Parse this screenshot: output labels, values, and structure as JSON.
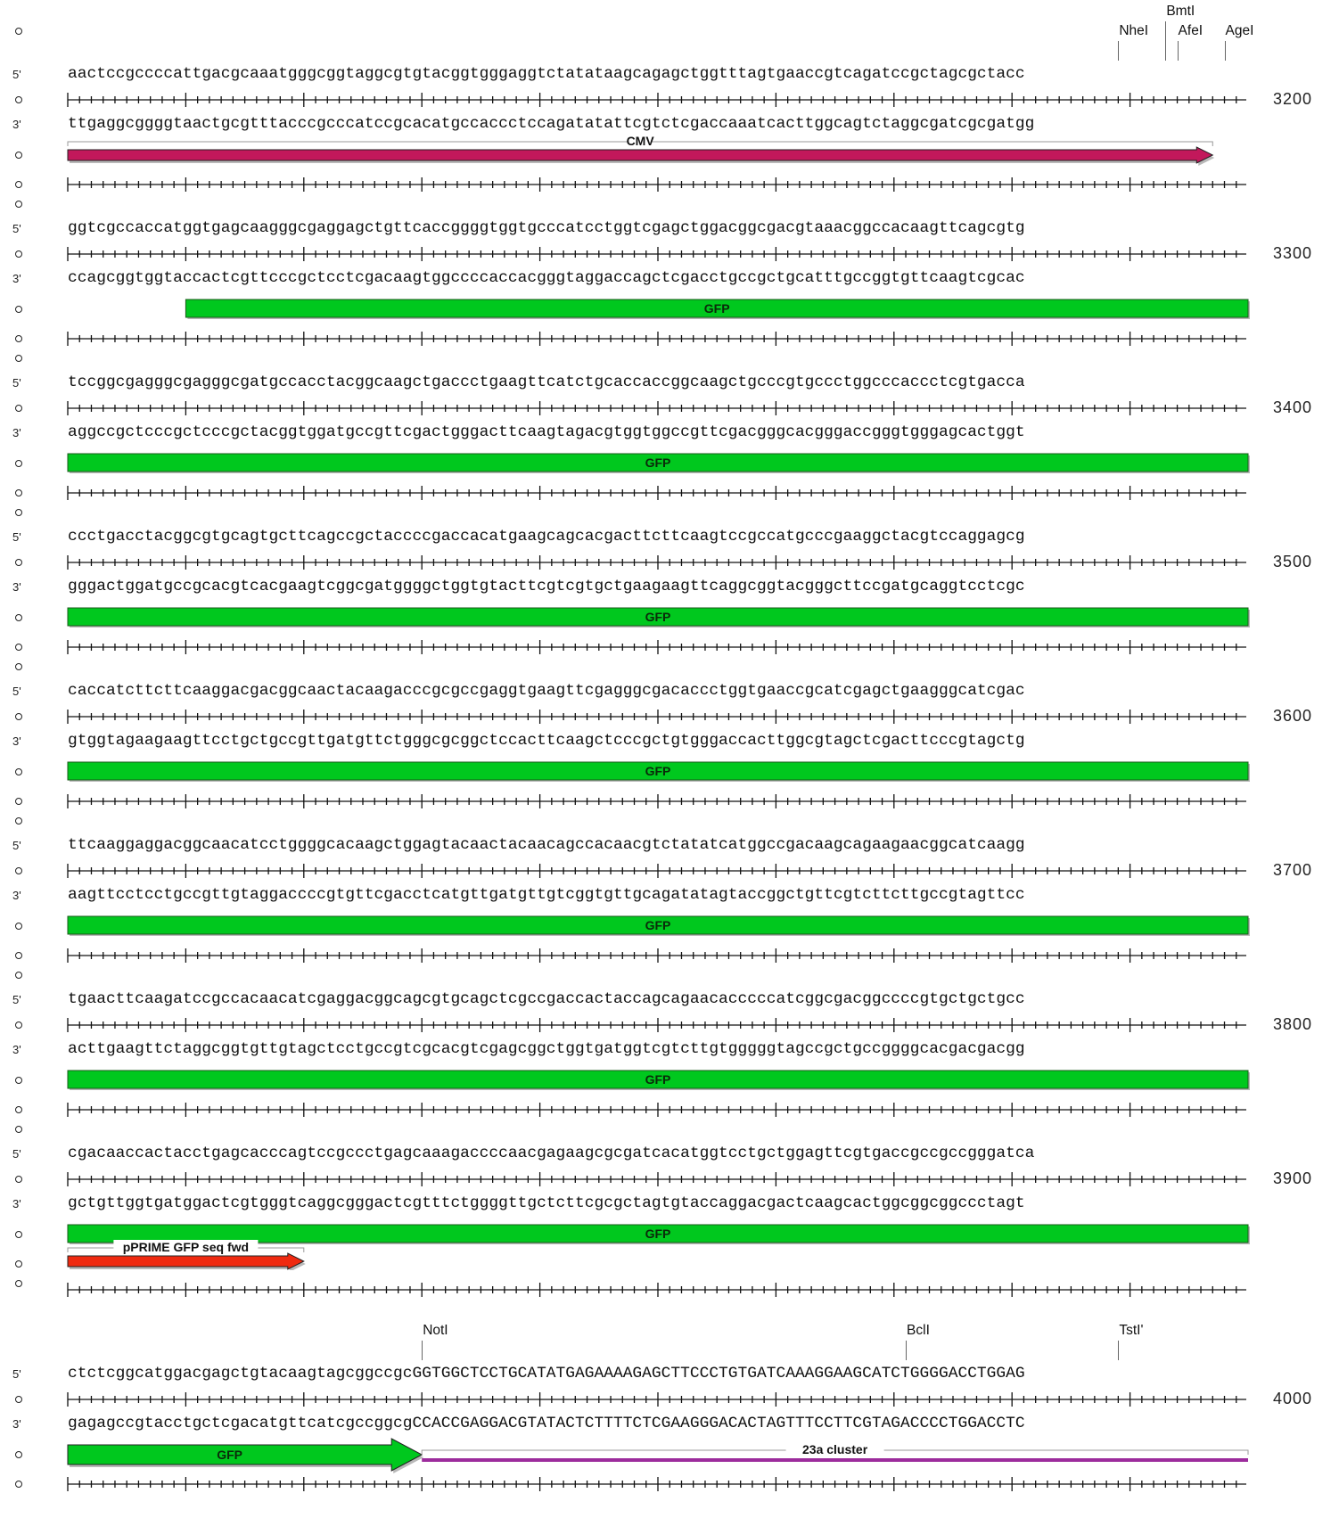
{
  "strand_labels": {
    "top": "5'",
    "bottom": "3'"
  },
  "rows": [
    {
      "top": "aactccgccccattgacgcaaatgggcggtaggcgtgtacggtgggaggtctatataagcagagctggtttagtgaaccgtcagatccgctagcgctacc",
      "bottom": "ttgaggcggggtaactgcgtttacccgcccatccgcacatgccaccctccagatatattcgtctcgaccaaatcacttggcagtctaggcgatcgcgatgg",
      "position": "3200",
      "sites": [
        {
          "name": "NheI",
          "bp": 89
        },
        {
          "name": "BmtI",
          "bp": 93
        },
        {
          "name": "AfeI",
          "bp": 94
        },
        {
          "name": "AgeI",
          "bp": 98
        }
      ],
      "features": [
        {
          "name": "CMV",
          "kind": "arrow",
          "color": "#c2185b",
          "start": 0,
          "end": 97,
          "dir": "fwd",
          "bracket": true
        }
      ]
    },
    {
      "top": "ggtcgccaccatggtgagcaagggcgaggagctgttcaccggggtggtgcccatcctggtcgagctggacggcgacgtaaacggccacaagttcagcgtg",
      "bottom": "ccagcggtggtaccactcgttcccgctcctcgacaagtggccccaccacgggtaggaccagctcgacctgccgctgcatttgccggtgttcaagtcgcac",
      "position": "3300",
      "sites": [],
      "features": [
        {
          "name": "GFP",
          "kind": "bar",
          "color": "#00c81e",
          "start": 10,
          "end": 100
        }
      ]
    },
    {
      "top": "tccggcgagggcgagggcgatgccacctacggcaagctgaccctgaagttcatctgcaccaccggcaagctgcccgtgccctggcccaccctcgtgacca",
      "bottom": "aggccgctcccgctcccgctacggtggatgccgttcgactgggacttcaagtagacgtggtggccgttcgacgggcacgggaccgggtgggagcactggt",
      "position": "3400",
      "sites": [],
      "features": [
        {
          "name": "GFP",
          "kind": "bar",
          "color": "#00c81e",
          "start": 0,
          "end": 100
        }
      ]
    },
    {
      "top": "ccctgacctacggcgtgcagtgcttcagccgctaccccgaccacatgaagcagcacgacttcttcaagtccgccatgcccgaaggctacgtccaggagcg",
      "bottom": "gggactggatgccgcacgtcacgaagtcggcgatggggctggtgtacttcgtcgtgctgaagaagttcaggcggtacgggcttccgatgcaggtcctcgc",
      "position": "3500",
      "sites": [],
      "features": [
        {
          "name": "GFP",
          "kind": "bar",
          "color": "#00c81e",
          "start": 0,
          "end": 100
        }
      ]
    },
    {
      "top": "caccatcttcttcaaggacgacggcaactacaagacccgcgccgaggtgaagttcgagggcgacaccctggtgaaccgcatcgagctgaagggcatcgac",
      "bottom": "gtggtagaagaagttcctgctgccgttgatgttctgggcgcggctccacttcaagctcccgctgtgggaccacttggcgtagctcgacttcccgtagctg",
      "position": "3600",
      "sites": [],
      "features": [
        {
          "name": "GFP",
          "kind": "bar",
          "color": "#00c81e",
          "start": 0,
          "end": 100
        }
      ]
    },
    {
      "top": "ttcaaggaggacggcaacatcctggggcacaagctggagtacaactacaacagccacaacgtctatatcatggccgacaagcagaagaacggcatcaagg",
      "bottom": "aagttcctcctgccgttgtaggaccccgtgttcgacctcatgttgatgttgtcggtgttgcagatatagtaccggctgttcgtcttcttgccgtagttcc",
      "position": "3700",
      "sites": [],
      "features": [
        {
          "name": "GFP",
          "kind": "bar",
          "color": "#00c81e",
          "start": 0,
          "end": 100
        }
      ]
    },
    {
      "top": "tgaacttcaagatccgccacaacatcgaggacggcagcgtgcagctcgccgaccactaccagcagaacacccccatcggcgacggccccgtgctgctgcc",
      "bottom": "acttgaagttctaggcggtgttgtagctcctgccgtcgcacgtcgagcggctggtgatggtcgtcttgtgggggtagccgctgccggggcacgacgacgg",
      "position": "3800",
      "sites": [],
      "features": [
        {
          "name": "GFP",
          "kind": "bar",
          "color": "#00c81e",
          "start": 0,
          "end": 100
        }
      ]
    },
    {
      "top": "cgacaaccactacctgagcacccagtccgccctgagcaaagaccccaacgagaagcgcgatcacatggtcctgctggagttcgtgaccgccgccgggatca",
      "bottom": "gctgttggtgatggactcgtgggtcaggcgggactcgtttctggggttgctcttcgcgctagtgtaccaggacgactcaagcactggcggcggccctagt",
      "position": "3900",
      "sites": [],
      "features": [
        {
          "name": "GFP",
          "kind": "bar",
          "color": "#00c81e",
          "start": 0,
          "end": 100
        },
        {
          "name": "pPRIME GFP seq fwd",
          "kind": "arrow",
          "color": "#ef2a10",
          "start": 0,
          "end": 20,
          "dir": "fwd",
          "bracket": true,
          "row": 1
        }
      ]
    },
    {
      "top": "ctctcggcatggacgagctgtacaagtagcggccgcGGTGGCTCCTGCATATGAGAAAAGAGCTTCCCTGTGATCAAAGGAAGCATCTGGGGACCTGGAG",
      "bottom": "gagagccgtacctgctcgacatgttcatcgccggcgCCACCGAGGACGTATACTCTTTTCTCGAAGGGACACTAGTTTCCTTCGTAGACCCCTGGACCTC",
      "position": "4000",
      "sites": [
        {
          "name": "NotI",
          "bp": 30
        },
        {
          "name": "BclI",
          "bp": 71
        },
        {
          "name": "TstI'",
          "bp": 89
        }
      ],
      "features": [
        {
          "name": "GFP",
          "kind": "arrow",
          "color": "#00c81e",
          "start": 0,
          "end": 30,
          "dir": "fwd",
          "bracket": false
        },
        {
          "name": "23a cluster",
          "kind": "line",
          "color": "#9c2c9c",
          "start": 30,
          "end": 100
        }
      ]
    }
  ]
}
